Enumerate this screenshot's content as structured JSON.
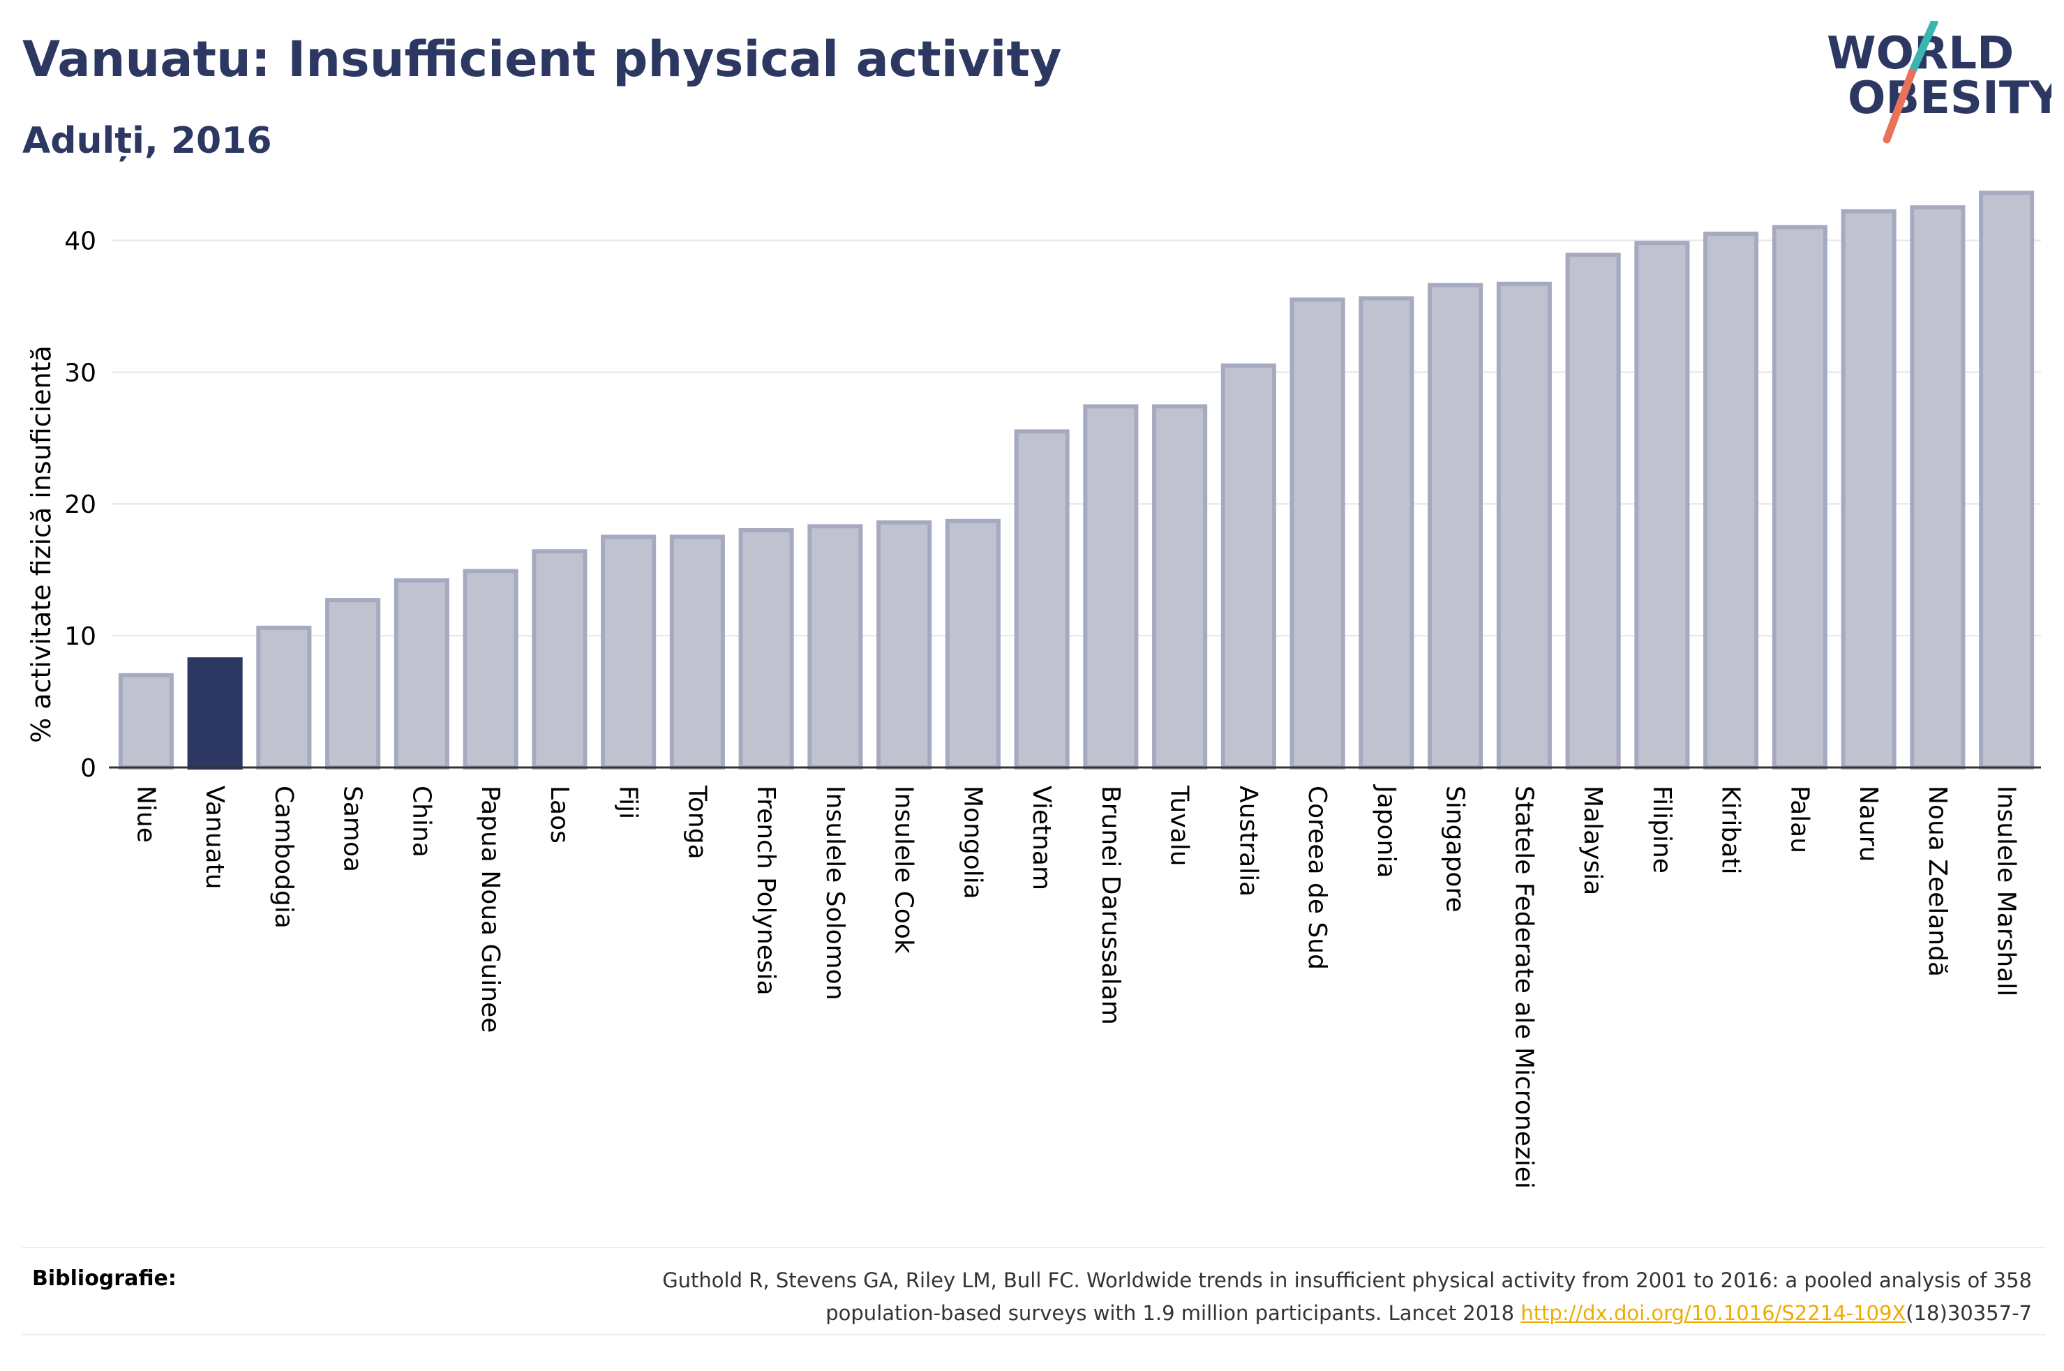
{
  "header": {
    "title": "Vanuatu: Insufficient physical activity",
    "subtitle": "Adulți, 2016"
  },
  "logo": {
    "line1": "WORLD",
    "line2": "OBESITY",
    "colors": {
      "text": "#2c3862",
      "slash_teal": "#3ab5b0",
      "slash_coral": "#e8735a"
    }
  },
  "chart_data": {
    "type": "bar",
    "ylabel": "% activitate fizică insuficientă",
    "xlabel": "",
    "ylim": [
      0,
      45
    ],
    "yticks": [
      0,
      10,
      20,
      30,
      40
    ],
    "grid": true,
    "legend": "none",
    "highlight": "Vanuatu",
    "colors": {
      "bar": "#c0c3cf",
      "bar_border": "#a6aac0",
      "highlight": "#2c3862",
      "grid": "#e6e6e6",
      "axis": "#333333"
    },
    "categories": [
      "Niue",
      "Vanuatu",
      "Cambodgia",
      "Samoa",
      "China",
      "Papua Noua Guinee",
      "Laos",
      "Fiji",
      "Tonga",
      "French Polynesia",
      "Insulele Solomon",
      "Insulele Cook",
      "Mongolia",
      "Vietnam",
      "Brunei Darussalam",
      "Tuvalu",
      "Australia",
      "Coreea de Sud",
      "Japonia",
      "Singapore",
      "Statele Federate ale Microneziei",
      "Malaysia",
      "Filipine",
      "Kiribati",
      "Palau",
      "Nauru",
      "Noua Zeelandă",
      "Insulele Marshall"
    ],
    "values": [
      7.0,
      8.2,
      10.6,
      12.7,
      14.2,
      14.9,
      16.4,
      17.5,
      17.5,
      18.0,
      18.3,
      18.6,
      18.7,
      25.5,
      27.4,
      27.4,
      30.5,
      35.5,
      35.6,
      36.6,
      36.7,
      38.9,
      39.8,
      40.5,
      41.0,
      42.2,
      42.5,
      43.6
    ]
  },
  "footer": {
    "label": "Bibliografie:",
    "citation_line1": "Guthold R, Stevens GA, Riley LM, Bull FC. Worldwide trends in insufficient physical activity from 2001 to 2016: a pooled analysis of 358",
    "citation_line2": "population-based surveys with 1.9 million participants. Lancet 2018 ",
    "link_text": "http://dx.doi.org/10.1016/S2214-109X",
    "citation_tail": "(18)30357-7"
  }
}
